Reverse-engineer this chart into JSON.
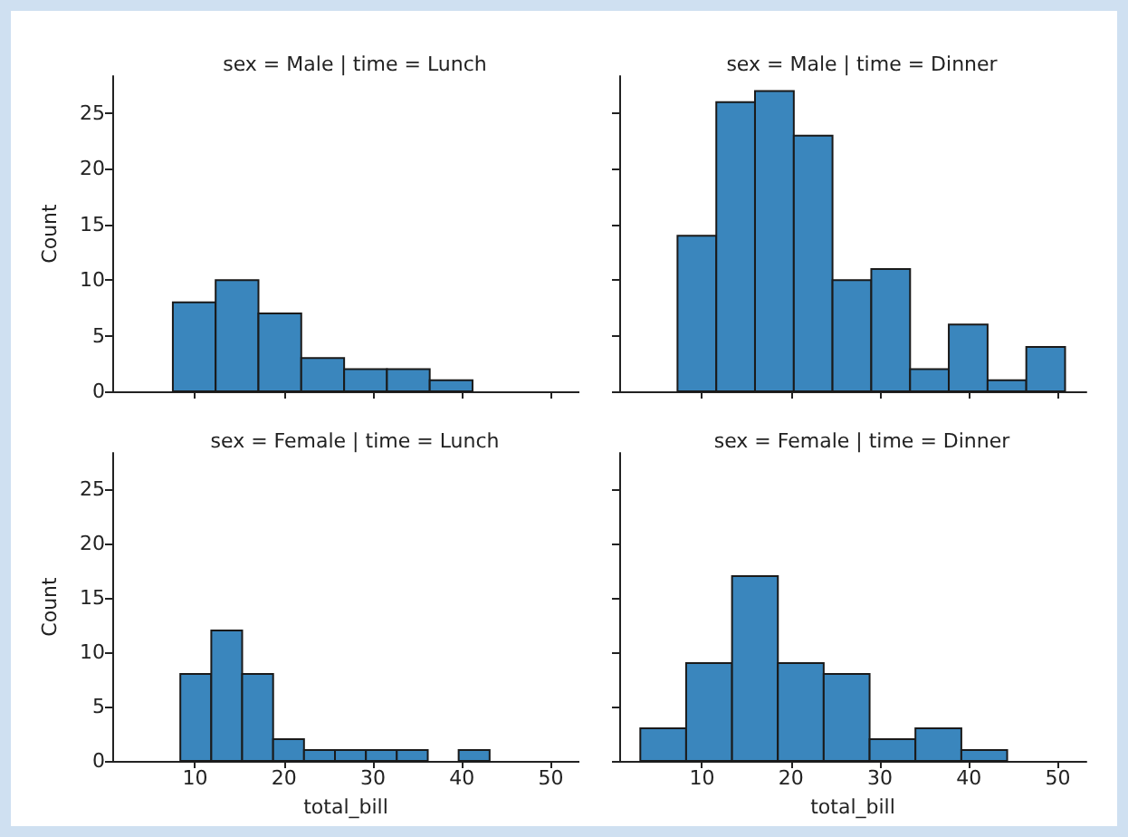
{
  "chart_data": [
    {
      "type": "histogram",
      "title": "sex = Male | time = Lunch",
      "ylabel": "Count",
      "bins": [
        7.51,
        12.32,
        17.13,
        21.94,
        26.76,
        31.57,
        36.38,
        41.19
      ],
      "values": [
        8,
        10,
        7,
        3,
        2,
        2,
        1
      ],
      "color": "#3a86bd",
      "xlim": [
        0.7,
        53.2
      ],
      "xticks": [
        10,
        20,
        30,
        40,
        50
      ],
      "ylim": [
        0,
        28.35
      ],
      "yticks": [
        0,
        5,
        10,
        15,
        20,
        25
      ],
      "tick_labels": "y",
      "grid": false
    },
    {
      "type": "histogram",
      "title": "sex = Male | time = Dinner",
      "bins": [
        7.25,
        11.61,
        15.96,
        20.32,
        24.67,
        29.03,
        33.39,
        37.74,
        42.1,
        46.45,
        50.81
      ],
      "values": [
        14,
        26,
        27,
        23,
        10,
        11,
        2,
        6,
        1,
        4
      ],
      "color": "#3a86bd",
      "xlim": [
        0.7,
        53.2
      ],
      "xticks": [
        10,
        20,
        30,
        40,
        50
      ],
      "ylim": [
        0,
        28.35
      ],
      "yticks": [
        0,
        5,
        10,
        15,
        20,
        25
      ],
      "tick_labels": false,
      "grid": false
    },
    {
      "type": "histogram",
      "title": "sex = Female | time = Lunch",
      "xlabel": "total_bill",
      "ylabel": "Count",
      "bins": [
        8.35,
        11.83,
        15.3,
        18.78,
        22.25,
        25.73,
        29.21,
        32.68,
        36.16,
        39.63,
        43.11
      ],
      "values": [
        8,
        12,
        8,
        2,
        1,
        1,
        1,
        1,
        0,
        1
      ],
      "color": "#3a86bd",
      "xlim": [
        0.7,
        53.2
      ],
      "xticks": [
        10,
        20,
        30,
        40,
        50
      ],
      "ylim": [
        0,
        28.35
      ],
      "yticks": [
        0,
        5,
        10,
        15,
        20,
        25
      ],
      "grid": false
    },
    {
      "type": "histogram",
      "title": "sex = Female | time = Dinner",
      "xlabel": "total_bill",
      "bins": [
        3.07,
        8.22,
        13.38,
        18.53,
        23.68,
        28.84,
        33.99,
        39.15,
        44.3
      ],
      "values": [
        3,
        9,
        17,
        9,
        8,
        2,
        3,
        1
      ],
      "color": "#3a86bd",
      "xlim": [
        0.7,
        53.2
      ],
      "xticks": [
        10,
        20,
        30,
        40,
        50
      ],
      "ylim": [
        0,
        28.35
      ],
      "yticks": [
        0,
        5,
        10,
        15,
        20,
        25
      ],
      "tick_labels": "x",
      "grid": false
    }
  ]
}
